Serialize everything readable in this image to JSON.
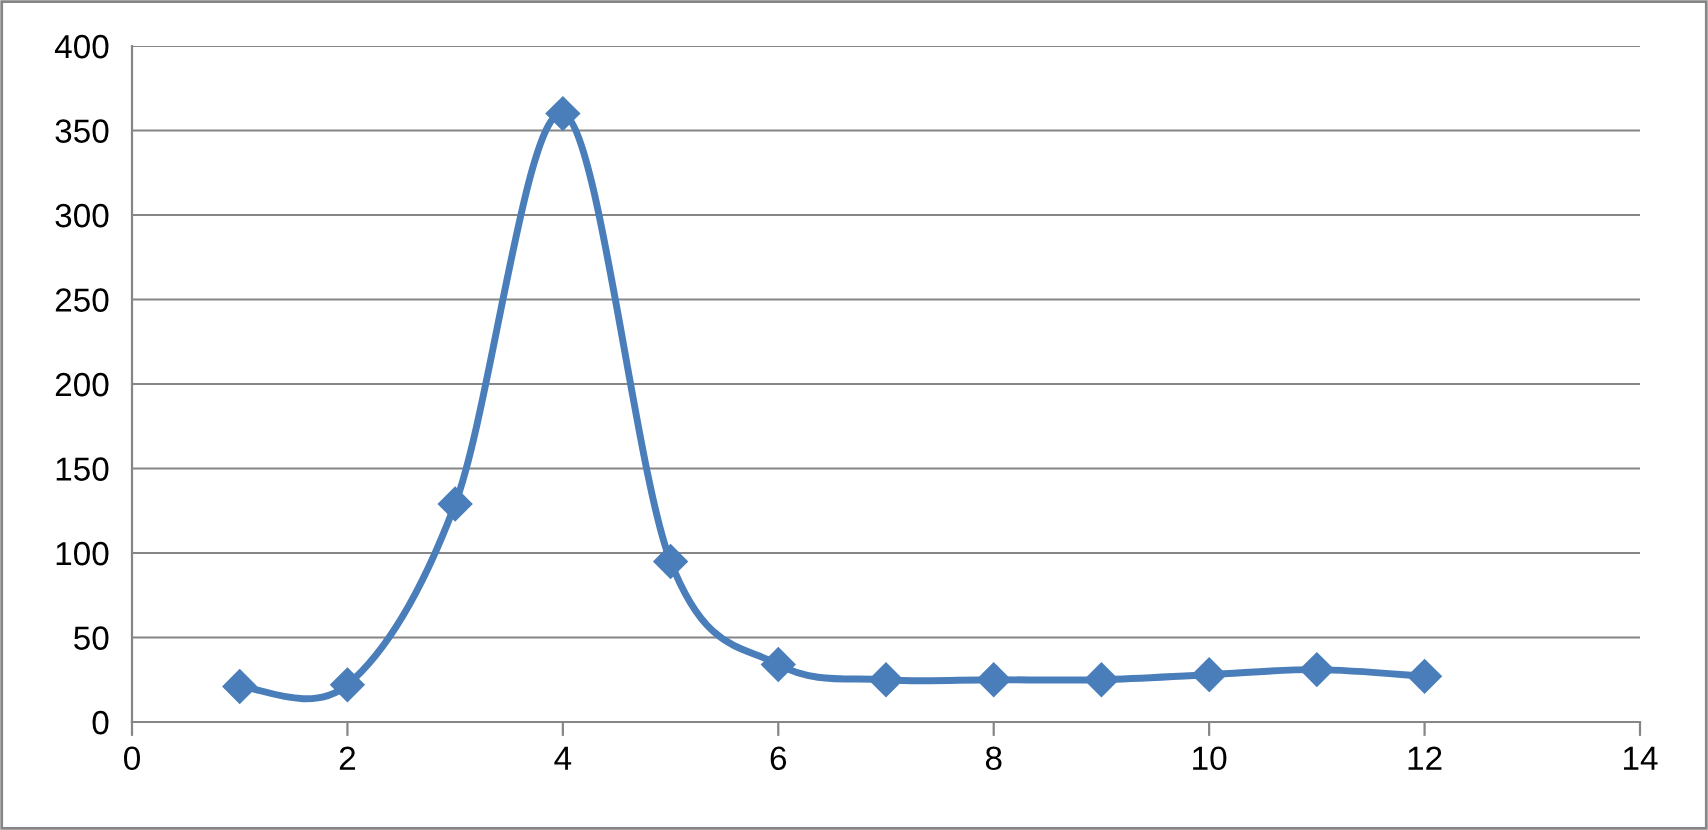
{
  "chart_data": {
    "type": "line",
    "x": [
      1,
      2,
      3,
      4,
      5,
      6,
      7,
      8,
      9,
      10,
      11,
      12
    ],
    "series": [
      {
        "color": "#4a7ebb",
        "values": [
          21,
          22,
          129,
          360,
          95,
          34,
          25,
          25,
          25,
          28,
          31,
          27
        ]
      }
    ],
    "xlim": [
      0,
      14
    ],
    "xticks": [
      0,
      2,
      4,
      6,
      8,
      10,
      12,
      14
    ],
    "ylim": [
      0,
      400
    ],
    "yticks": [
      0,
      50,
      100,
      150,
      200,
      250,
      300,
      350,
      400
    ],
    "grid": "y",
    "marker": "diamond",
    "line_style": "solid",
    "legend": false
  }
}
